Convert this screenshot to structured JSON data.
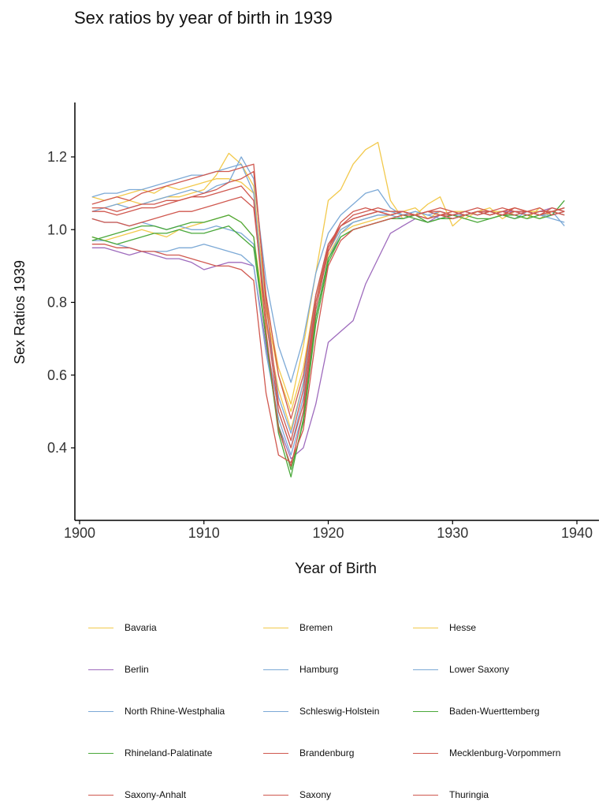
{
  "chart_data": {
    "type": "line",
    "title": "Sex ratios by year of birth in 1939",
    "xlabel": "Year of Birth",
    "ylabel": "Sex Ratios 1939",
    "xlim": [
      1899,
      1941
    ],
    "ylim": [
      0.2,
      1.35
    ],
    "xticks": [
      1900,
      1910,
      1920,
      1930,
      1940
    ],
    "yticks": [
      0.4,
      0.6,
      0.8,
      1.0,
      1.2
    ],
    "ytick_labels": [
      "0.4",
      "0.6",
      "0.8",
      "1.0",
      "1.2"
    ],
    "grid": false,
    "legend_position": "bottom",
    "x": [
      1901,
      1902,
      1903,
      1904,
      1905,
      1906,
      1907,
      1908,
      1909,
      1910,
      1911,
      1912,
      1913,
      1914,
      1915,
      1916,
      1917,
      1918,
      1919,
      1920,
      1921,
      1922,
      1923,
      1924,
      1925,
      1926,
      1927,
      1928,
      1929,
      1930,
      1931,
      1932,
      1933,
      1934,
      1935,
      1936,
      1937,
      1938,
      1939
    ],
    "series": [
      {
        "name": "Bavaria",
        "color": "#f2c94c",
        "values": [
          1.06,
          1.06,
          1.07,
          1.08,
          1.07,
          1.08,
          1.09,
          1.09,
          1.1,
          1.11,
          1.15,
          1.21,
          1.18,
          1.12,
          0.78,
          0.6,
          0.5,
          0.62,
          0.82,
          0.94,
          1.0,
          1.02,
          1.03,
          1.04,
          1.04,
          1.05,
          1.04,
          1.05,
          1.04,
          1.05,
          1.05,
          1.04,
          1.05,
          1.05,
          1.06,
          1.05,
          1.05,
          1.06,
          1.05
        ]
      },
      {
        "name": "Bremen",
        "color": "#f2c94c",
        "values": [
          0.98,
          0.97,
          0.98,
          0.99,
          1.0,
          0.99,
          0.98,
          1.0,
          1.01,
          1.02,
          1.03,
          1.04,
          1.02,
          0.98,
          0.74,
          0.56,
          0.45,
          0.58,
          0.8,
          0.93,
          0.99,
          1.01,
          1.02,
          1.03,
          1.04,
          1.05,
          1.06,
          1.03,
          1.05,
          1.04,
          1.03,
          1.05,
          1.04,
          1.05,
          1.04,
          1.03,
          1.06,
          1.04,
          1.05
        ]
      },
      {
        "name": "Hesse",
        "color": "#f2c94c",
        "values": [
          1.09,
          1.08,
          1.09,
          1.1,
          1.11,
          1.1,
          1.12,
          1.11,
          1.12,
          1.13,
          1.14,
          1.14,
          1.13,
          1.1,
          0.8,
          0.62,
          0.52,
          0.68,
          0.88,
          1.08,
          1.11,
          1.18,
          1.22,
          1.24,
          1.08,
          1.03,
          1.04,
          1.07,
          1.09,
          1.01,
          1.04,
          1.05,
          1.06,
          1.03,
          1.05,
          1.04,
          1.03,
          1.05,
          1.04
        ]
      },
      {
        "name": "Berlin",
        "color": "#9e6bbd",
        "values": [
          0.95,
          0.95,
          0.94,
          0.93,
          0.94,
          0.93,
          0.92,
          0.92,
          0.91,
          0.89,
          0.9,
          0.91,
          0.91,
          0.9,
          0.68,
          0.46,
          0.37,
          0.4,
          0.52,
          0.69,
          0.72,
          0.75,
          0.85,
          0.92,
          0.99,
          1.01,
          1.03,
          1.02,
          1.04,
          1.03,
          1.04,
          1.05,
          1.04,
          1.05,
          1.05,
          1.04,
          1.05,
          1.06,
          1.05
        ]
      },
      {
        "name": "Hamburg",
        "color": "#7ca9d6",
        "values": [
          1.05,
          1.06,
          1.07,
          1.06,
          1.07,
          1.08,
          1.09,
          1.1,
          1.11,
          1.1,
          1.12,
          1.13,
          1.2,
          1.14,
          0.86,
          0.68,
          0.58,
          0.7,
          0.88,
          0.99,
          1.04,
          1.07,
          1.1,
          1.11,
          1.06,
          1.04,
          1.05,
          1.04,
          1.03,
          1.04,
          1.05,
          1.04,
          1.05,
          1.04,
          1.03,
          1.05,
          1.04,
          1.03,
          1.02
        ]
      },
      {
        "name": "Lower Saxony",
        "color": "#7ca9d6",
        "values": [
          1.09,
          1.1,
          1.1,
          1.11,
          1.11,
          1.12,
          1.13,
          1.14,
          1.15,
          1.15,
          1.16,
          1.17,
          1.18,
          1.1,
          0.76,
          0.54,
          0.44,
          0.58,
          0.82,
          0.96,
          1.01,
          1.03,
          1.04,
          1.05,
          1.05,
          1.04,
          1.05,
          1.04,
          1.05,
          1.04,
          1.04,
          1.05,
          1.05,
          1.04,
          1.05,
          1.04,
          1.05,
          1.05,
          1.01
        ]
      },
      {
        "name": "North Rhine-Westphalia",
        "color": "#7ca9d6",
        "values": [
          0.97,
          0.97,
          0.96,
          0.95,
          0.94,
          0.94,
          0.94,
          0.95,
          0.95,
          0.96,
          0.95,
          0.94,
          0.93,
          0.9,
          0.66,
          0.48,
          0.38,
          0.5,
          0.76,
          0.92,
          0.99,
          1.02,
          1.03,
          1.04,
          1.04,
          1.05,
          1.04,
          1.03,
          1.04,
          1.04,
          1.05,
          1.04,
          1.05,
          1.04,
          1.05,
          1.05,
          1.04,
          1.05,
          1.04
        ]
      },
      {
        "name": "Schleswig-Holstein",
        "color": "#7ca9d6",
        "values": [
          1.03,
          1.02,
          1.02,
          1.01,
          1.02,
          1.01,
          1.0,
          1.01,
          1.0,
          1.0,
          1.01,
          1.0,
          0.99,
          0.96,
          0.7,
          0.5,
          0.4,
          0.54,
          0.78,
          0.94,
          1.0,
          1.02,
          1.03,
          1.04,
          1.04,
          1.03,
          1.04,
          1.05,
          1.04,
          1.03,
          1.04,
          1.05,
          1.04,
          1.05,
          1.04,
          1.05,
          1.04,
          1.04,
          1.05
        ]
      },
      {
        "name": "Baden-Wuerttemberg",
        "color": "#4aa83a",
        "values": [
          0.97,
          0.98,
          0.99,
          1.0,
          1.01,
          1.01,
          1.0,
          1.01,
          1.02,
          1.02,
          1.03,
          1.04,
          1.02,
          0.98,
          0.7,
          0.44,
          0.32,
          0.48,
          0.76,
          0.92,
          0.98,
          1.0,
          1.01,
          1.02,
          1.03,
          1.03,
          1.04,
          1.02,
          1.03,
          1.04,
          1.03,
          1.02,
          1.03,
          1.04,
          1.03,
          1.04,
          1.03,
          1.04,
          1.08
        ]
      },
      {
        "name": "Rhineland-Palatinate",
        "color": "#4aa83a",
        "values": [
          0.98,
          0.97,
          0.96,
          0.97,
          0.98,
          0.99,
          0.99,
          1.0,
          0.99,
          0.99,
          1.0,
          1.01,
          0.98,
          0.95,
          0.7,
          0.46,
          0.34,
          0.47,
          0.74,
          0.91,
          0.98,
          1.0,
          1.01,
          1.02,
          1.03,
          1.04,
          1.03,
          1.02,
          1.03,
          1.03,
          1.04,
          1.03,
          1.03,
          1.04,
          1.04,
          1.03,
          1.04,
          1.05,
          1.06
        ]
      },
      {
        "name": "Brandenburg",
        "color": "#d0584f",
        "values": [
          1.06,
          1.06,
          1.05,
          1.06,
          1.07,
          1.07,
          1.08,
          1.08,
          1.09,
          1.09,
          1.1,
          1.11,
          1.12,
          1.08,
          0.72,
          0.45,
          0.35,
          0.5,
          0.78,
          0.94,
          1.01,
          1.04,
          1.05,
          1.06,
          1.05,
          1.05,
          1.04,
          1.05,
          1.06,
          1.05,
          1.04,
          1.05,
          1.05,
          1.04,
          1.06,
          1.05,
          1.04,
          1.06,
          1.05
        ]
      },
      {
        "name": "Mecklenburg-Vorpommern",
        "color": "#d0584f",
        "values": [
          1.07,
          1.08,
          1.09,
          1.08,
          1.1,
          1.11,
          1.12,
          1.13,
          1.14,
          1.15,
          1.16,
          1.16,
          1.17,
          1.18,
          0.8,
          0.52,
          0.42,
          0.56,
          0.8,
          0.95,
          1.02,
          1.05,
          1.06,
          1.05,
          1.04,
          1.05,
          1.04,
          1.03,
          1.04,
          1.05,
          1.04,
          1.05,
          1.04,
          1.05,
          1.06,
          1.05,
          1.04,
          1.05,
          1.06
        ]
      },
      {
        "name": "Saxony-Anhalt",
        "color": "#d0584f",
        "values": [
          1.05,
          1.05,
          1.04,
          1.05,
          1.06,
          1.06,
          1.07,
          1.08,
          1.09,
          1.1,
          1.11,
          1.13,
          1.14,
          1.16,
          0.82,
          0.6,
          0.48,
          0.6,
          0.82,
          0.96,
          1.01,
          1.03,
          1.04,
          1.05,
          1.04,
          1.05,
          1.04,
          1.05,
          1.04,
          1.04,
          1.05,
          1.06,
          1.05,
          1.04,
          1.05,
          1.05,
          1.06,
          1.04,
          1.05
        ]
      },
      {
        "name": "Saxony",
        "color": "#d0584f",
        "values": [
          0.96,
          0.96,
          0.95,
          0.95,
          0.94,
          0.94,
          0.93,
          0.93,
          0.92,
          0.91,
          0.9,
          0.9,
          0.89,
          0.86,
          0.55,
          0.38,
          0.36,
          0.45,
          0.7,
          0.9,
          0.97,
          1.0,
          1.01,
          1.02,
          1.03,
          1.04,
          1.04,
          1.03,
          1.04,
          1.03,
          1.04,
          1.05,
          1.04,
          1.05,
          1.04,
          1.05,
          1.04,
          1.05,
          1.04
        ]
      },
      {
        "name": "Thuringia",
        "color": "#d0584f",
        "values": [
          1.03,
          1.02,
          1.02,
          1.01,
          1.02,
          1.03,
          1.04,
          1.05,
          1.05,
          1.06,
          1.07,
          1.08,
          1.09,
          1.06,
          0.76,
          0.5,
          0.4,
          0.52,
          0.8,
          0.95,
          1.01,
          1.03,
          1.04,
          1.05,
          1.04,
          1.05,
          1.04,
          1.05,
          1.05,
          1.04,
          1.05,
          1.04,
          1.05,
          1.06,
          1.05,
          1.04,
          1.05,
          1.05,
          1.06
        ]
      }
    ]
  }
}
